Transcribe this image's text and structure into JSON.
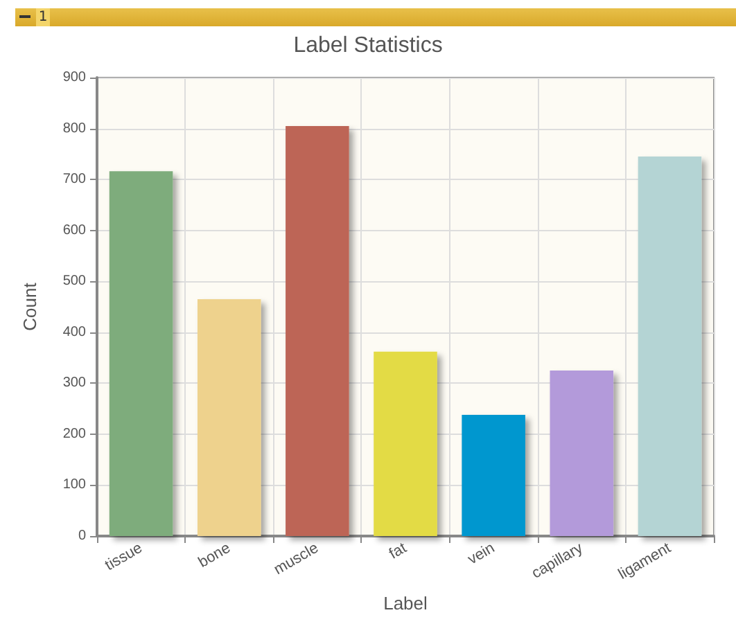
{
  "chart_data": {
    "type": "bar",
    "title": "Label Statistics",
    "xlabel": "Label",
    "ylabel": "Count",
    "annotations": [
      "1"
    ],
    "categories": [
      "tissue",
      "bone",
      "muscle",
      "fat",
      "vein",
      "capillary",
      "ligament"
    ],
    "values": [
      716,
      465,
      805,
      362,
      238,
      325,
      745
    ],
    "colors": [
      "#7eac7c",
      "#eed28d",
      "#bd6557",
      "#e3db45",
      "#0097cf",
      "#b39ada",
      "#b4d4d4"
    ],
    "ylim": [
      0,
      900
    ],
    "yticks": [
      0,
      100,
      200,
      300,
      400,
      500,
      600,
      700,
      800,
      900
    ],
    "grid": true
  }
}
